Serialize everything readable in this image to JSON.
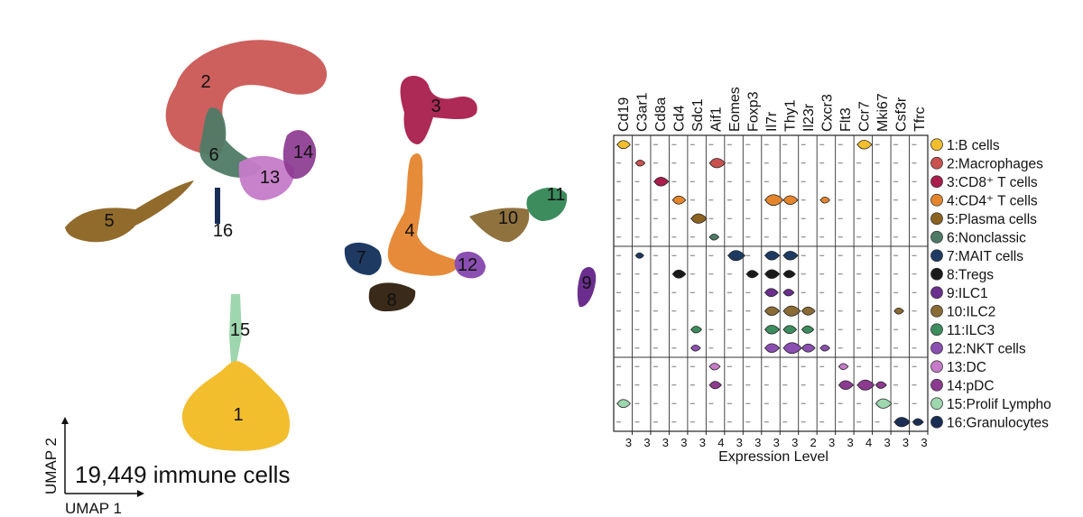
{
  "chart_data": [
    {
      "type": "scatter",
      "subtype": "umap",
      "xlabel": "UMAP 1",
      "ylabel": "UMAP 2",
      "annotation": "19,449 immune cells",
      "clusters": [
        {
          "id": "1",
          "color": "#F2BE2E"
        },
        {
          "id": "2",
          "color": "#C9524F"
        },
        {
          "id": "3",
          "color": "#A91E4D"
        },
        {
          "id": "4",
          "color": "#E4852E"
        },
        {
          "id": "5",
          "color": "#8B6320"
        },
        {
          "id": "6",
          "color": "#4F7A66"
        },
        {
          "id": "7",
          "color": "#1E3A63"
        },
        {
          "id": "8",
          "color": "#3A2A1A"
        },
        {
          "id": "9",
          "color": "#6B2E8E"
        },
        {
          "id": "10",
          "color": "#8A6A35"
        },
        {
          "id": "11",
          "color": "#3C8C5E"
        },
        {
          "id": "12",
          "color": "#8A4FB0"
        },
        {
          "id": "13",
          "color": "#C57BC8"
        },
        {
          "id": "14",
          "color": "#8C3A90"
        },
        {
          "id": "15",
          "color": "#9ED6AE"
        },
        {
          "id": "16",
          "color": "#1A2E55"
        }
      ]
    },
    {
      "type": "violin",
      "xlabel": "Expression Level",
      "genes": [
        "Cd19",
        "C3ar1",
        "Cd8a",
        "Cd4",
        "Sdc1",
        "Aif1",
        "Eomes",
        "Foxp3",
        "Il7r",
        "Thy1",
        "Il23r",
        "Cxcr3",
        "Flt3",
        "Ccr7",
        "Mki67",
        "Csf3r",
        "Tfrc"
      ],
      "max_values": [
        "3",
        "3",
        "3",
        "3",
        "3",
        "4",
        "3",
        "3",
        "3",
        "3",
        "2",
        "3",
        "3",
        "4",
        "3",
        "3",
        "3"
      ],
      "cell_types": [
        {
          "label": "1:B cells",
          "color": "#F2BE2E"
        },
        {
          "label": "2:Macrophages",
          "color": "#C9524F"
        },
        {
          "label": "3:CD8⁺ T cells",
          "color": "#A91E4D"
        },
        {
          "label": "4:CD4⁺ T cells",
          "color": "#E4852E"
        },
        {
          "label": "5:Plasma cells",
          "color": "#8B6320"
        },
        {
          "label": "6:Nonclassic",
          "color": "#4F7A66"
        },
        {
          "label": "7:MAIT cells",
          "color": "#1E3A63"
        },
        {
          "label": "8:Tregs",
          "color": "#1A1A1A"
        },
        {
          "label": "9:ILC1",
          "color": "#6B2E8E"
        },
        {
          "label": "10:ILC2",
          "color": "#8A6A35"
        },
        {
          "label": "11:ILC3",
          "color": "#3C8C5E"
        },
        {
          "label": "12:NKT cells",
          "color": "#8A4FB0"
        },
        {
          "label": "13:DC",
          "color": "#C57BC8"
        },
        {
          "label": "14:pDC",
          "color": "#8C3A90"
        },
        {
          "label": "15:Prolif Lympho",
          "color": "#9ED6AE"
        },
        {
          "label": "16:Granulocytes",
          "color": "#1A2E55"
        }
      ],
      "violins": [
        {
          "row": 1,
          "gene": 0,
          "size": 0.6
        },
        {
          "row": 1,
          "gene": 13,
          "size": 0.7
        },
        {
          "row": 2,
          "gene": 1,
          "size": 0.3
        },
        {
          "row": 2,
          "gene": 5,
          "size": 0.8
        },
        {
          "row": 3,
          "gene": 2,
          "size": 0.7
        },
        {
          "row": 4,
          "gene": 3,
          "size": 0.6
        },
        {
          "row": 4,
          "gene": 8,
          "size": 1.0
        },
        {
          "row": 4,
          "gene": 9,
          "size": 0.7
        },
        {
          "row": 4,
          "gene": 11,
          "size": 0.3
        },
        {
          "row": 5,
          "gene": 4,
          "size": 0.8
        },
        {
          "row": 6,
          "gene": 5,
          "size": 0.3
        },
        {
          "row": 7,
          "gene": 1,
          "size": 0.2
        },
        {
          "row": 7,
          "gene": 6,
          "size": 0.9
        },
        {
          "row": 7,
          "gene": 8,
          "size": 0.7
        },
        {
          "row": 7,
          "gene": 9,
          "size": 0.7
        },
        {
          "row": 8,
          "gene": 3,
          "size": 0.6
        },
        {
          "row": 8,
          "gene": 7,
          "size": 0.5
        },
        {
          "row": 8,
          "gene": 8,
          "size": 0.7
        },
        {
          "row": 8,
          "gene": 9,
          "size": 0.5
        },
        {
          "row": 9,
          "gene": 8,
          "size": 0.6
        },
        {
          "row": 9,
          "gene": 9,
          "size": 0.4
        },
        {
          "row": 10,
          "gene": 8,
          "size": 0.7
        },
        {
          "row": 10,
          "gene": 9,
          "size": 0.9
        },
        {
          "row": 10,
          "gene": 10,
          "size": 0.6
        },
        {
          "row": 10,
          "gene": 15,
          "size": 0.3
        },
        {
          "row": 11,
          "gene": 4,
          "size": 0.4
        },
        {
          "row": 11,
          "gene": 8,
          "size": 0.7
        },
        {
          "row": 11,
          "gene": 9,
          "size": 0.6
        },
        {
          "row": 11,
          "gene": 10,
          "size": 0.5
        },
        {
          "row": 12,
          "gene": 4,
          "size": 0.3
        },
        {
          "row": 12,
          "gene": 8,
          "size": 0.7
        },
        {
          "row": 12,
          "gene": 9,
          "size": 1.0
        },
        {
          "row": 12,
          "gene": 10,
          "size": 0.6
        },
        {
          "row": 12,
          "gene": 11,
          "size": 0.3
        },
        {
          "row": 13,
          "gene": 5,
          "size": 0.4
        },
        {
          "row": 13,
          "gene": 12,
          "size": 0.3
        },
        {
          "row": 14,
          "gene": 5,
          "size": 0.5
        },
        {
          "row": 14,
          "gene": 12,
          "size": 0.7
        },
        {
          "row": 14,
          "gene": 13,
          "size": 0.9
        },
        {
          "row": 14,
          "gene": 14,
          "size": 0.4
        },
        {
          "row": 15,
          "gene": 0,
          "size": 0.6
        },
        {
          "row": 15,
          "gene": 14,
          "size": 0.8
        },
        {
          "row": 16,
          "gene": 15,
          "size": 0.8
        },
        {
          "row": 16,
          "gene": 16,
          "size": 0.4
        }
      ]
    }
  ]
}
